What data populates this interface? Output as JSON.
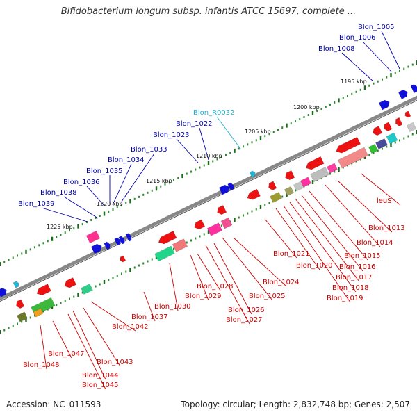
{
  "title": "Bifidobacterium longum subsp. infantis ATCC 15697, complete ...",
  "footer": {
    "accession": "Accession: NC_011593",
    "summary": "Topology: circular; Length: 2,832,748 bp; Genes: 2,507"
  },
  "colors": {
    "forward_gene": "#1010dd",
    "reverse_gene": "#ee1111",
    "rna_gene": "#1fb8d8",
    "reverse_label": "#cc0000",
    "forward_label": "#0000aa",
    "rna_label": "#22b0d0",
    "backbone": "#888888"
  },
  "scale_ticks": [
    "1195 kbp",
    "1200 kbp",
    "1205 kbp",
    "1210 kbp",
    "1215 kbp",
    "1220 kbp",
    "1225 kbp"
  ],
  "forward_labels": [
    "Blon_1005",
    "Blon_1006",
    "Blon_1008",
    "Blon_1022",
    "Blon_1023",
    "Blon_1033",
    "Blon_1034",
    "Blon_1035",
    "Blon_1036",
    "Blon_1038",
    "Blon_1039"
  ],
  "rna_labels": [
    "Blon_R0032"
  ],
  "reverse_labels": [
    "leuS",
    "Blon_1013",
    "Blon_1014",
    "Blon_1015",
    "Blon_1016",
    "Blon_1017",
    "Blon_1018",
    "Blon_1019",
    "Blon_1020",
    "Blon_1021",
    "Blon_1024",
    "Blon_1025",
    "Blon_1026",
    "Blon_1027",
    "Blon_1028",
    "Blon_1029",
    "Blon_1030",
    "Blon_1037",
    "Blon_1042",
    "Blon_1043",
    "Blon_1044",
    "Blon_1045",
    "Blon_1047",
    "Blon_1048"
  ]
}
